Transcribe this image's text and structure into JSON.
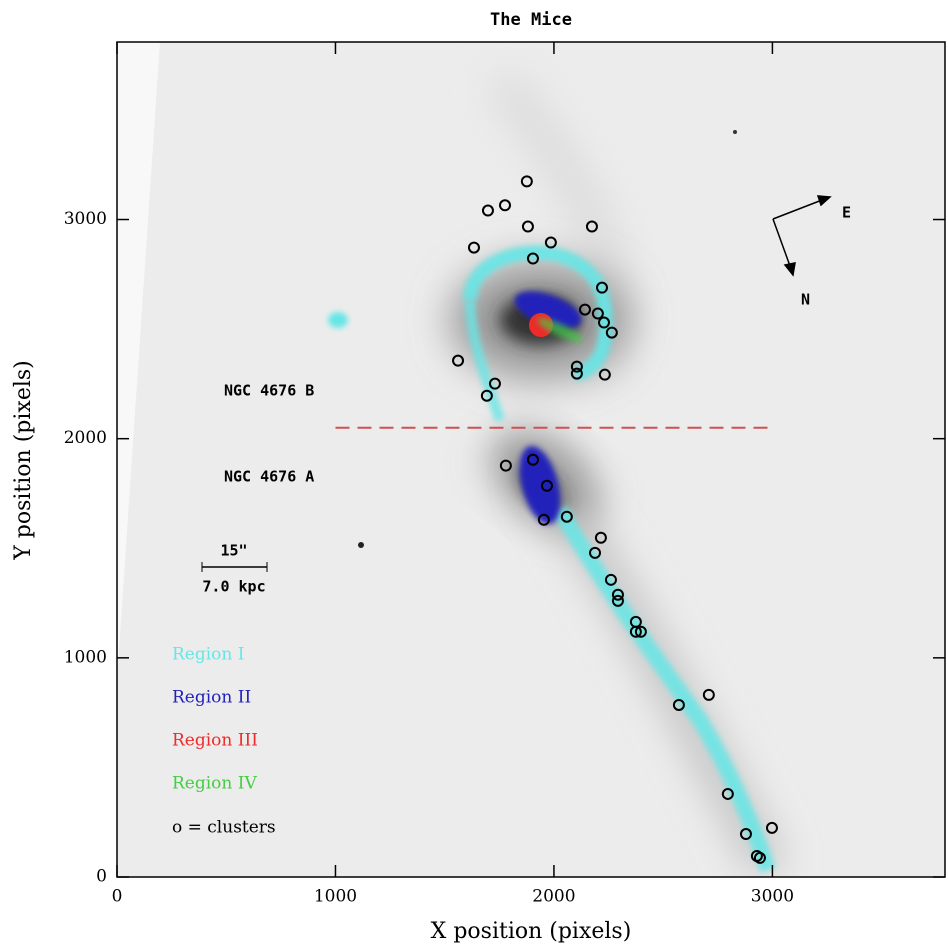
{
  "chart_data": {
    "type": "scatter",
    "title": "The Mice",
    "x_label": "X position (pixels)",
    "y_label": "Y position (pixels)",
    "xlim": [
      0,
      3790
    ],
    "ylim": [
      0,
      3810
    ],
    "xticks": [
      0,
      1000,
      2000,
      3000
    ],
    "yticks": [
      0,
      1000,
      2000,
      3000
    ],
    "series": [
      {
        "name": "o = clusters",
        "color": "#000000",
        "x": [
          1876,
          1776,
          1698,
          1881,
          1634,
          1986,
          2174,
          1904,
          2220,
          2142,
          2201,
          2229,
          2265,
          1561,
          2105,
          2105,
          2233,
          1730,
          1693,
          1780,
          1904,
          1968,
          1954,
          2059,
          2215,
          2188,
          2261,
          2293,
          2293,
          2375,
          2398,
          2375,
          2709,
          2572,
          2796,
          2998,
          2879,
          2929,
          2943
        ],
        "values": [
          3174,
          3065,
          3041,
          2968,
          2872,
          2895,
          2968,
          2822,
          2689,
          2589,
          2571,
          2530,
          2484,
          2356,
          2329,
          2297,
          2292,
          2251,
          2196,
          1877,
          1904,
          1785,
          1630,
          1644,
          1548,
          1479,
          1356,
          1288,
          1260,
          1164,
          1119,
          1119,
          831,
          785,
          379,
          224,
          196,
          96,
          87
        ]
      }
    ],
    "regions": [
      {
        "name": "Region I",
        "color": "#66e6e6"
      },
      {
        "name": "Region II",
        "color": "#2222bb"
      },
      {
        "name": "Region III",
        "color": "#ee2a2a"
      },
      {
        "name": "Region IV",
        "color": "#44cc44"
      }
    ],
    "divider": {
      "y": 2050,
      "x": [
        1000,
        3000
      ],
      "color": "#d05050"
    },
    "annotations": [
      "NGC 4676 B",
      "NGC 4676 A"
    ],
    "scale_bar": [
      "15\"",
      "7.0 kpc"
    ],
    "compass": [
      "E",
      "N"
    ]
  }
}
